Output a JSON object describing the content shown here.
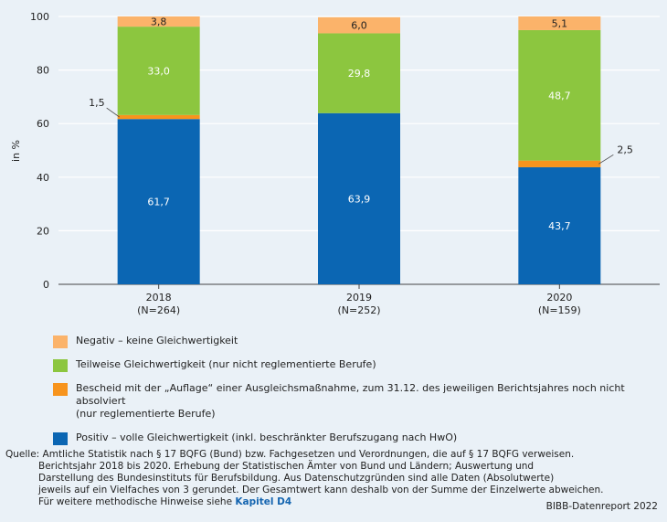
{
  "chart_data": {
    "type": "bar",
    "stacked": true,
    "categories": [
      "2018",
      "2019",
      "2020"
    ],
    "category_sub": [
      "(N=264)",
      "(N=252)",
      "(N=159)"
    ],
    "ylabel": "in %",
    "ylim": [
      0,
      100
    ],
    "yticks": [
      0,
      20,
      40,
      60,
      80,
      100
    ],
    "grid": true,
    "series": [
      {
        "key": "positiv",
        "name": "Positiv – volle Gleichwertigkeit (inkl. beschränkter Berufszugang nach HwO)",
        "color": "#0b66b3",
        "values": [
          61.7,
          63.9,
          43.7
        ],
        "labels": [
          "61,7",
          "63,9",
          "43,7"
        ]
      },
      {
        "key": "auflage",
        "name": "Bescheid mit der „Auflage“ einer Ausgleichsmaßnahme, zum 31.12. des jeweiligen Berichtsjahres noch nicht absolviert",
        "name_line2": "(nur reglementierte Berufe)",
        "color": "#f7941d",
        "values": [
          1.5,
          0,
          2.5
        ],
        "labels": [
          "1,5",
          "",
          "2,5"
        ]
      },
      {
        "key": "teilweise",
        "name": "Teilweise Gleichwertigkeit (nur nicht reglementierte Berufe)",
        "color": "#8cc63f",
        "values": [
          33.0,
          29.8,
          48.7
        ],
        "labels": [
          "33,0",
          "29,8",
          "48,7"
        ]
      },
      {
        "key": "negativ",
        "name": "Negativ – keine Gleichwertigkeit",
        "color": "#fbb36a",
        "values": [
          3.8,
          6.0,
          5.1
        ],
        "labels": [
          "3,8",
          "6,0",
          "5,1"
        ]
      }
    ]
  },
  "footer": {
    "line1": "Quelle: Amtliche Statistik nach § 17 BQFG (Bund) bzw. Fachgesetzen und Verordnungen, die auf § 17 BQFG verweisen.",
    "line2": "Berichtsjahr 2018 bis 2020. Erhebung der Statistischen Ämter von Bund und Ländern; Auswertung und",
    "line3": "Darstellung des Bundesinstituts für Berufsbildung. Aus Datenschutzgründen sind alle Daten (Absolutwerte)",
    "line4": "jeweils auf ein Vielfaches von 3 gerundet. Der Gesamtwert kann deshalb von der Summe der Einzelwerte abweichen.",
    "line5_prefix": "Für weitere methodische Hinweise siehe ",
    "line5_link": "Kapitel D4"
  },
  "brand": "BIBB-Datenreport 2022"
}
